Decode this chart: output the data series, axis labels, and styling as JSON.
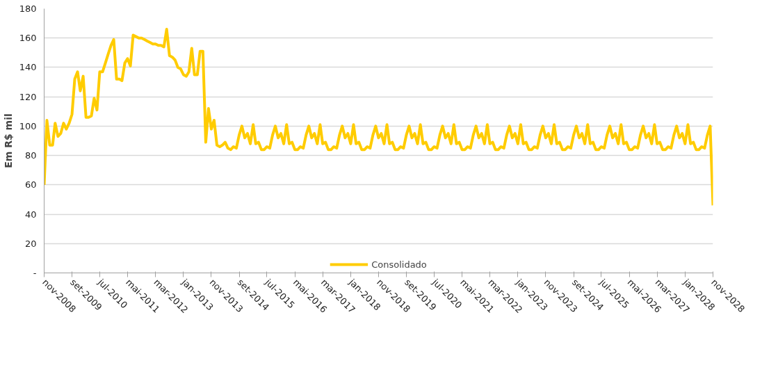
{
  "chart_data": {
    "type": "line",
    "ylabel": "Em R$ mil",
    "x": [
      "2008-11",
      "2008-12",
      "2009-01",
      "2009-02",
      "2009-03",
      "2009-04",
      "2009-05",
      "2009-06",
      "2009-07",
      "2009-08",
      "2009-09",
      "2009-10",
      "2009-11",
      "2009-12",
      "2010-01",
      "2010-02",
      "2010-03",
      "2010-04",
      "2010-05",
      "2010-06",
      "2010-07",
      "2010-08",
      "2010-09",
      "2010-10",
      "2010-11",
      "2010-12",
      "2011-01",
      "2011-02",
      "2011-03",
      "2011-04",
      "2011-05",
      "2011-06",
      "2011-07",
      "2011-08",
      "2011-09",
      "2011-10",
      "2011-11",
      "2011-12",
      "2012-01",
      "2012-02",
      "2012-03",
      "2012-04",
      "2012-05",
      "2012-06",
      "2012-07",
      "2012-08",
      "2012-09",
      "2012-10",
      "2012-11",
      "2012-12",
      "2013-01",
      "2013-02",
      "2013-03",
      "2013-04",
      "2013-05",
      "2013-06",
      "2013-07",
      "2013-08",
      "2013-09",
      "2013-10",
      "2013-11",
      "2013-12",
      "2014-01",
      "2014-02",
      "2014-03",
      "2014-04",
      "2014-05",
      "2014-06",
      "2014-07",
      "2014-08",
      "2014-09",
      "2014-10",
      "2014-11",
      "2014-12",
      "2015-01",
      "2015-02",
      "2015-03",
      "2015-04",
      "2015-05",
      "2015-06",
      "2015-07",
      "2015-08",
      "2015-09",
      "2015-10",
      "2015-11",
      "2015-12",
      "2016-01",
      "2016-02",
      "2016-03",
      "2016-04",
      "2016-05",
      "2016-06",
      "2016-07",
      "2016-08",
      "2016-09",
      "2016-10",
      "2016-11",
      "2016-12",
      "2017-01",
      "2017-02",
      "2017-03",
      "2017-04",
      "2017-05",
      "2017-06",
      "2017-07",
      "2017-08",
      "2017-09",
      "2017-10",
      "2017-11",
      "2017-12",
      "2018-01",
      "2018-02",
      "2018-03",
      "2018-04",
      "2018-05",
      "2018-06",
      "2018-07",
      "2018-08",
      "2018-09",
      "2018-10",
      "2018-11",
      "2018-12",
      "2019-01",
      "2019-02",
      "2019-03",
      "2019-04",
      "2019-05",
      "2019-06",
      "2019-07",
      "2019-08",
      "2019-09",
      "2019-10",
      "2019-11",
      "2019-12",
      "2020-01",
      "2020-02",
      "2020-03",
      "2020-04",
      "2020-05",
      "2020-06",
      "2020-07",
      "2020-08",
      "2020-09",
      "2020-10",
      "2020-11",
      "2020-12",
      "2021-01",
      "2021-02",
      "2021-03",
      "2021-04",
      "2021-05",
      "2021-06",
      "2021-07",
      "2021-08",
      "2021-09",
      "2021-10",
      "2021-11",
      "2021-12",
      "2022-01",
      "2022-02",
      "2022-03",
      "2022-04",
      "2022-05",
      "2022-06",
      "2022-07",
      "2022-08",
      "2022-09",
      "2022-10",
      "2022-11",
      "2022-12",
      "2023-01",
      "2023-02",
      "2023-03",
      "2023-04",
      "2023-05",
      "2023-06",
      "2023-07",
      "2023-08",
      "2023-09",
      "2023-10",
      "2023-11",
      "2023-12",
      "2024-01",
      "2024-02",
      "2024-03",
      "2024-04",
      "2024-05",
      "2024-06",
      "2024-07",
      "2024-08",
      "2024-09",
      "2024-10",
      "2024-11",
      "2024-12",
      "2025-01",
      "2025-02",
      "2025-03",
      "2025-04",
      "2025-05",
      "2025-06",
      "2025-07",
      "2025-08",
      "2025-09",
      "2025-10",
      "2025-11",
      "2025-12",
      "2026-01",
      "2026-02",
      "2026-03",
      "2026-04",
      "2026-05",
      "2026-06",
      "2026-07",
      "2026-08",
      "2026-09",
      "2026-10",
      "2026-11",
      "2026-12",
      "2027-01",
      "2027-02",
      "2027-03",
      "2027-04",
      "2027-05",
      "2027-06",
      "2027-07",
      "2027-08",
      "2027-09",
      "2027-10",
      "2027-11",
      "2027-12",
      "2028-01",
      "2028-02",
      "2028-03",
      "2028-04",
      "2028-05",
      "2028-06",
      "2028-07",
      "2028-08",
      "2028-09",
      "2028-10",
      "2028-11"
    ],
    "series": [
      {
        "name": "Consolidado",
        "color": "#ffcc00",
        "values": [
          60,
          104,
          87,
          87,
          102,
          93,
          95,
          102,
          98,
          102,
          108,
          132,
          137,
          124,
          134,
          106,
          106,
          107,
          119,
          111,
          137,
          137,
          143,
          149,
          155,
          159,
          132,
          132,
          131,
          143,
          146,
          141,
          162,
          161,
          160,
          160,
          159,
          158,
          157,
          156,
          156,
          155,
          155,
          154,
          166,
          148,
          147,
          145,
          140,
          139,
          135,
          134,
          137,
          153,
          135,
          135,
          151,
          151,
          89,
          112,
          98,
          104,
          87,
          86,
          87,
          89,
          85,
          84,
          86,
          85,
          94,
          100,
          92,
          95,
          88,
          101,
          88,
          89,
          84,
          84,
          86,
          85,
          94,
          100,
          92,
          95,
          88,
          101,
          88,
          89,
          84,
          84,
          86,
          85,
          94,
          100,
          92,
          95,
          88,
          101,
          88,
          89,
          84,
          84,
          86,
          85,
          94,
          100,
          92,
          95,
          88,
          101,
          88,
          89,
          84,
          84,
          86,
          85,
          94,
          100,
          92,
          95,
          88,
          101,
          88,
          89,
          84,
          84,
          86,
          85,
          94,
          100,
          92,
          95,
          88,
          101,
          88,
          89,
          84,
          84,
          86,
          85,
          94,
          100,
          92,
          95,
          88,
          101,
          88,
          89,
          84,
          84,
          86,
          85,
          94,
          100,
          92,
          95,
          88,
          101,
          88,
          89,
          84,
          84,
          86,
          85,
          94,
          100,
          92,
          95,
          88,
          101,
          88,
          89,
          84,
          84,
          86,
          85,
          94,
          100,
          92,
          95,
          88,
          101,
          88,
          89,
          84,
          84,
          86,
          85,
          94,
          100,
          92,
          95,
          88,
          101,
          88,
          89,
          84,
          84,
          86,
          85,
          94,
          100,
          92,
          95,
          88,
          101,
          88,
          89,
          84,
          84,
          86,
          85,
          94,
          100,
          92,
          95,
          88,
          101,
          88,
          89,
          84,
          84,
          86,
          85,
          94,
          100,
          92,
          95,
          88,
          101,
          88,
          89,
          84,
          84,
          86,
          85,
          94,
          100,
          46
        ]
      }
    ],
    "xlim": [
      "2008-11",
      "2028-11"
    ],
    "xticks": [
      {
        "value": "2008-11",
        "label": "nov-2008"
      },
      {
        "value": "2009-09",
        "label": "set-2009"
      },
      {
        "value": "2010-07",
        "label": "jul-2010"
      },
      {
        "value": "2011-05",
        "label": "mai-2011"
      },
      {
        "value": "2012-03",
        "label": "mar-2012"
      },
      {
        "value": "2013-01",
        "label": "jan-2013"
      },
      {
        "value": "2013-11",
        "label": "nov-2013"
      },
      {
        "value": "2014-09",
        "label": "set-2014"
      },
      {
        "value": "2015-07",
        "label": "jul-2015"
      },
      {
        "value": "2016-05",
        "label": "mai-2016"
      },
      {
        "value": "2017-03",
        "label": "mar-2017"
      },
      {
        "value": "2018-01",
        "label": "jan-2018"
      },
      {
        "value": "2018-11",
        "label": "nov-2018"
      },
      {
        "value": "2019-09",
        "label": "set-2019"
      },
      {
        "value": "2020-07",
        "label": "jul-2020"
      },
      {
        "value": "2021-05",
        "label": "mai-2021"
      },
      {
        "value": "2022-03",
        "label": "mar-2022"
      },
      {
        "value": "2023-01",
        "label": "jan-2023"
      },
      {
        "value": "2023-11",
        "label": "nov-2023"
      },
      {
        "value": "2024-09",
        "label": "set-2024"
      },
      {
        "value": "2025-07",
        "label": "jul-2025"
      },
      {
        "value": "2026-05",
        "label": "mai-2026"
      },
      {
        "value": "2027-03",
        "label": "mar-2027"
      },
      {
        "value": "2028-01",
        "label": "jan-2028"
      },
      {
        "value": "2028-11",
        "label": "nov-2028"
      }
    ],
    "ylim": [
      0,
      180
    ],
    "yticks": [
      {
        "value": 0,
        "label": "-"
      },
      20,
      40,
      60,
      80,
      100,
      120,
      140,
      160,
      180
    ],
    "grid": "y",
    "legend": "bottom",
    "marker": "none",
    "line_style": "solid"
  }
}
